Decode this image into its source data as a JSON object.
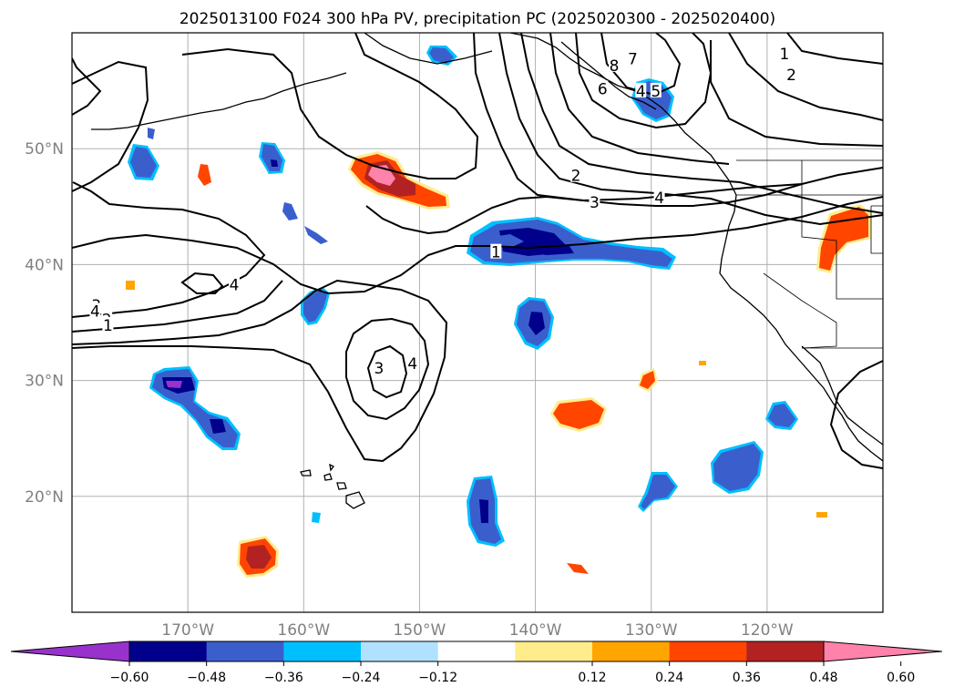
{
  "title": "2025013100 F024 300 hPa PV, precipitation PC (2025020300 - 2025020400)",
  "colors": {
    "grid": "#b0b0b0",
    "coast": "#000000",
    "pv_contour": "#000000",
    "axis_label": "#808080"
  },
  "map": {
    "lon_range": [
      -180,
      -110
    ],
    "lat_range": [
      10,
      60
    ],
    "lat_labels": [
      {
        "lat": 50,
        "text": "50°N"
      },
      {
        "lat": 40,
        "text": "40°N"
      },
      {
        "lat": 30,
        "text": "30°N"
      },
      {
        "lat": 20,
        "text": "20°N"
      }
    ],
    "lon_labels": [
      {
        "lon": -170,
        "text": "170°W"
      },
      {
        "lon": -160,
        "text": "160°W"
      },
      {
        "lon": -150,
        "text": "150°W"
      },
      {
        "lon": -140,
        "text": "140°W"
      },
      {
        "lon": -130,
        "text": "130°W"
      },
      {
        "lon": -120,
        "text": "120°W"
      }
    ],
    "pv_labels": [
      {
        "lon": -118.5,
        "lat": 58.1,
        "text": "1"
      },
      {
        "lon": -117.9,
        "lat": 56.3,
        "text": "2"
      },
      {
        "lon": -131.6,
        "lat": 57.7,
        "text": "7"
      },
      {
        "lon": -133.2,
        "lat": 57.1,
        "text": "8"
      },
      {
        "lon": -134.2,
        "lat": 55.1,
        "text": "6"
      },
      {
        "lon": -129.6,
        "lat": 54.9,
        "text": "5"
      },
      {
        "lon": -130.9,
        "lat": 54.9,
        "text": "4"
      },
      {
        "lon": -129.3,
        "lat": 45.7,
        "text": "4"
      },
      {
        "lon": -134.9,
        "lat": 45.3,
        "text": "3"
      },
      {
        "lon": -136.5,
        "lat": 47.6,
        "text": "2"
      },
      {
        "lon": -143.4,
        "lat": 41.0,
        "text": "1"
      },
      {
        "lon": -177.9,
        "lat": 36.4,
        "text": "3"
      },
      {
        "lon": -177.0,
        "lat": 35.2,
        "text": "2"
      },
      {
        "lon": -176.9,
        "lat": 34.7,
        "text": "1"
      },
      {
        "lon": -178.0,
        "lat": 35.9,
        "text": "4"
      },
      {
        "lon": -166.0,
        "lat": 38.2,
        "text": "4"
      },
      {
        "lon": -153.5,
        "lat": 31.0,
        "text": "3"
      },
      {
        "lon": -150.6,
        "lat": 31.4,
        "text": "4"
      }
    ]
  },
  "colorbar": {
    "ticks": [
      "−0.60",
      "−0.48",
      "−0.36",
      "−0.24",
      "−0.12",
      "0.12",
      "0.24",
      "0.36",
      "0.48",
      "0.60"
    ],
    "colors": [
      "#9932cc",
      "#00008b",
      "#3a5fcd",
      "#00bfff",
      "#b0e2ff",
      "#ffffff",
      "#ffec8b",
      "#ffa500",
      "#ff4500",
      "#b22222",
      "#ff82ab"
    ],
    "extend": "both"
  }
}
